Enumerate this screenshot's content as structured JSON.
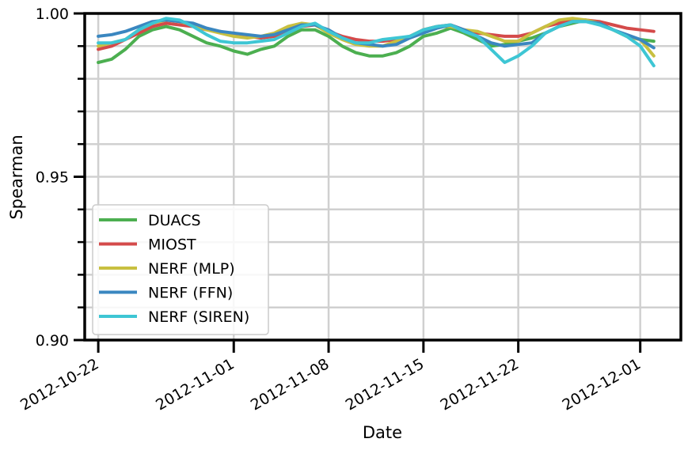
{
  "chart_data": {
    "type": "line",
    "xlabel": "Date",
    "ylabel": "Spearman",
    "ylim": [
      0.9,
      1.0
    ],
    "xlim": [
      "2012-10-21",
      "2012-12-04"
    ],
    "grid": true,
    "legend_position": "lower-left",
    "y_major_ticks": [
      "1.00",
      "0.95",
      "0.90"
    ],
    "x_ticks": [
      "2012-10-22",
      "2012-11-01",
      "2012-11-08",
      "2012-11-15",
      "2012-11-22",
      "2012-12-01"
    ],
    "x": [
      "2012-10-22",
      "2012-10-23",
      "2012-10-24",
      "2012-10-25",
      "2012-10-26",
      "2012-10-27",
      "2012-10-28",
      "2012-10-29",
      "2012-10-30",
      "2012-10-31",
      "2012-11-01",
      "2012-11-02",
      "2012-11-03",
      "2012-11-04",
      "2012-11-05",
      "2012-11-06",
      "2012-11-07",
      "2012-11-08",
      "2012-11-09",
      "2012-11-10",
      "2012-11-11",
      "2012-11-12",
      "2012-11-13",
      "2012-11-14",
      "2012-11-15",
      "2012-11-16",
      "2012-11-17",
      "2012-11-18",
      "2012-11-19",
      "2012-11-20",
      "2012-11-21",
      "2012-11-22",
      "2012-11-23",
      "2012-11-24",
      "2012-11-25",
      "2012-11-26",
      "2012-11-27",
      "2012-11-28",
      "2012-11-29",
      "2012-11-30",
      "2012-12-01",
      "2012-12-02"
    ],
    "series": [
      {
        "name": "DUACS",
        "color": "#4caf50",
        "values": [
          0.985,
          0.986,
          0.989,
          0.993,
          0.995,
          0.996,
          0.995,
          0.993,
          0.991,
          0.99,
          0.9885,
          0.9875,
          0.989,
          0.99,
          0.993,
          0.995,
          0.995,
          0.993,
          0.99,
          0.988,
          0.987,
          0.987,
          0.988,
          0.99,
          0.993,
          0.994,
          0.9955,
          0.994,
          0.992,
          0.99,
          0.9905,
          0.9915,
          0.9925,
          0.994,
          0.996,
          0.997,
          0.998,
          0.997,
          0.995,
          0.993,
          0.992,
          0.9915
        ]
      },
      {
        "name": "MIOST",
        "color": "#d44a4a",
        "values": [
          0.989,
          0.99,
          0.992,
          0.994,
          0.996,
          0.997,
          0.9965,
          0.996,
          0.995,
          0.9945,
          0.9935,
          0.993,
          0.9925,
          0.993,
          0.995,
          0.996,
          0.9965,
          0.9945,
          0.993,
          0.992,
          0.9915,
          0.9915,
          0.992,
          0.993,
          0.995,
          0.996,
          0.9965,
          0.995,
          0.994,
          0.9935,
          0.993,
          0.993,
          0.994,
          0.996,
          0.997,
          0.998,
          0.998,
          0.9975,
          0.9965,
          0.9955,
          0.995,
          0.9945
        ]
      },
      {
        "name": "NERF (MLP)",
        "color": "#c8c040",
        "values": [
          0.99,
          0.991,
          0.992,
          0.995,
          0.997,
          0.998,
          0.9975,
          0.9965,
          0.995,
          0.994,
          0.993,
          0.9925,
          0.993,
          0.994,
          0.996,
          0.997,
          0.9965,
          0.994,
          0.992,
          0.9905,
          0.99,
          0.99,
          0.9915,
          0.993,
          0.995,
          0.996,
          0.996,
          0.995,
          0.9945,
          0.993,
          0.9915,
          0.9915,
          0.994,
          0.996,
          0.998,
          0.9985,
          0.998,
          0.997,
          0.995,
          0.993,
          0.992,
          0.987
        ]
      },
      {
        "name": "NERF (FFN)",
        "color": "#3a87c0",
        "values": [
          0.993,
          0.9935,
          0.9945,
          0.996,
          0.9975,
          0.998,
          0.9975,
          0.997,
          0.9955,
          0.9945,
          0.994,
          0.9935,
          0.993,
          0.9935,
          0.995,
          0.9965,
          0.9965,
          0.995,
          0.9925,
          0.991,
          0.9905,
          0.99,
          0.9905,
          0.9925,
          0.994,
          0.9955,
          0.9965,
          0.995,
          0.993,
          0.991,
          0.99,
          0.9905,
          0.991,
          0.994,
          0.996,
          0.9975,
          0.9975,
          0.997,
          0.995,
          0.9935,
          0.992,
          0.9895
        ]
      },
      {
        "name": "NERF (SIREN)",
        "color": "#3ec6d4",
        "values": [
          0.991,
          0.991,
          0.992,
          0.995,
          0.997,
          0.9985,
          0.998,
          0.996,
          0.9935,
          0.9915,
          0.991,
          0.991,
          0.9915,
          0.992,
          0.994,
          0.996,
          0.997,
          0.9945,
          0.9925,
          0.991,
          0.991,
          0.992,
          0.9925,
          0.993,
          0.995,
          0.996,
          0.9965,
          0.9945,
          0.993,
          0.989,
          0.985,
          0.987,
          0.99,
          0.994,
          0.996,
          0.9975,
          0.9975,
          0.9965,
          0.995,
          0.993,
          0.99,
          0.984
        ]
      }
    ]
  }
}
